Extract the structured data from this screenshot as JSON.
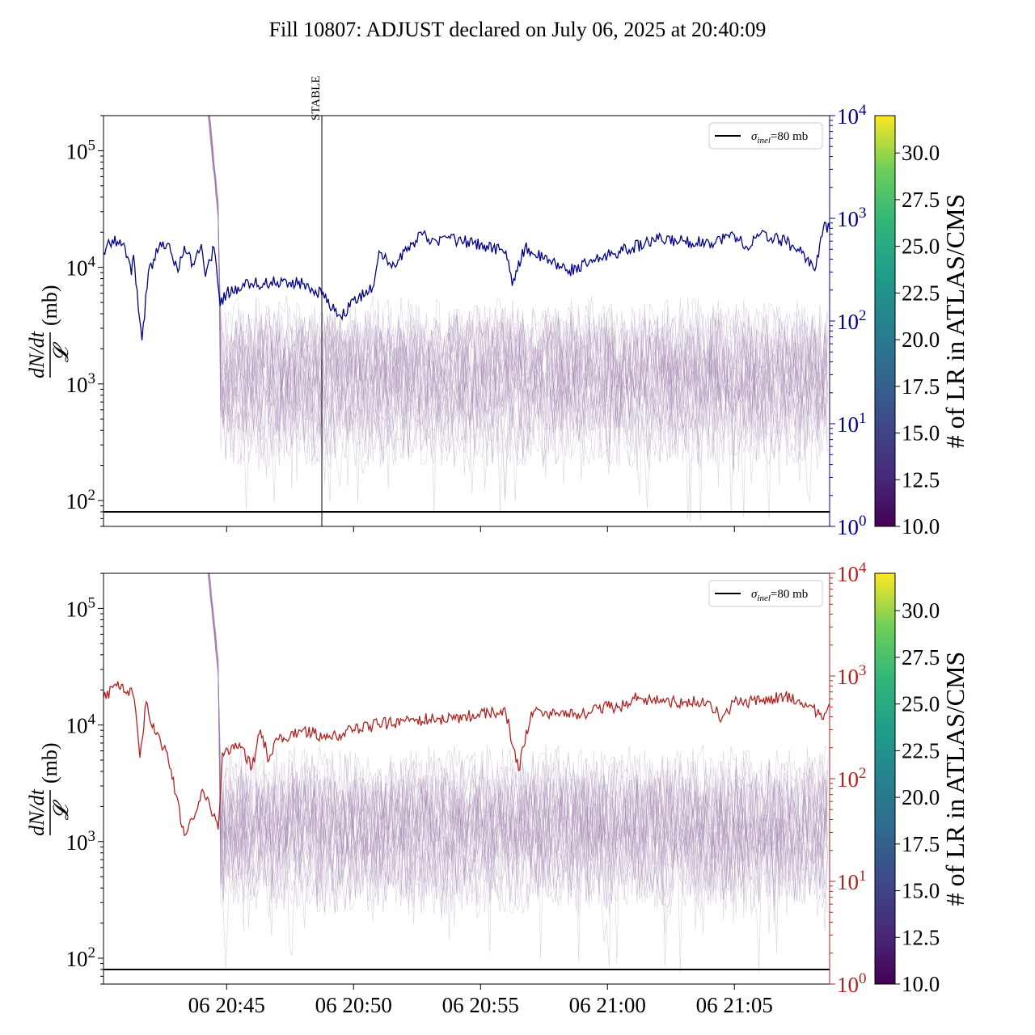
{
  "figure": {
    "title": "Fill 10807: ADJUST declared on July 06, 2025 at 20:40:09"
  },
  "chart_data": [
    {
      "type": "line",
      "panel": "top",
      "title": "",
      "ylabel_left": "dN/dt / 𝓛 (mb)",
      "ylabel_left_parts": {
        "numerator": "dN/dt",
        "denominator": "𝓛",
        "unit": "(mb)"
      },
      "yscale_left": "log",
      "ylim_left": [
        60,
        200000
      ],
      "yticks_left": [
        100,
        1000,
        10000,
        100000
      ],
      "yticklabels_left": [
        "10^2",
        "10^3",
        "10^4",
        "10^5"
      ],
      "yscale_right": "log",
      "ylim_right": [
        1,
        10000
      ],
      "yticks_right": [
        1,
        10,
        100,
        1000,
        10000
      ],
      "yticklabels_right": [
        "10^0",
        "10^1",
        "10^2",
        "10^3",
        "10^4"
      ],
      "right_axis_color": "#00008b",
      "xlim_minutes": [
        "20:40:09",
        "21:08:45"
      ],
      "xticks": [
        "20:45",
        "20:50",
        "20:55",
        "21:00",
        "21:05"
      ],
      "xticklabels": [],
      "vline": {
        "time": "20:48:45",
        "label": "STABLE"
      },
      "hline": {
        "value": 80,
        "label": "σinel=80 mb"
      },
      "legend": {
        "entries": [
          {
            "label_main": "σ",
            "label_sub": "inel",
            "label_rest": "=80 mb"
          }
        ],
        "placement": "upper right"
      },
      "series": [
        {
          "axis": "right",
          "color": "#00008b",
          "points": [
            [
              "20:40:09",
              460
            ],
            [
              "20:40:30",
              620
            ],
            [
              "20:41:00",
              520
            ],
            [
              "20:41:15",
              280
            ],
            [
              "20:41:20",
              440
            ],
            [
              "20:41:40",
              65
            ],
            [
              "20:41:55",
              300
            ],
            [
              "20:42:20",
              520
            ],
            [
              "20:42:45",
              560
            ],
            [
              "20:43:05",
              300
            ],
            [
              "20:43:20",
              540
            ],
            [
              "20:43:40",
              360
            ],
            [
              "20:44:00",
              560
            ],
            [
              "20:44:10",
              270
            ],
            [
              "20:44:30",
              520
            ],
            [
              "20:44:45",
              140
            ],
            [
              "20:45:00",
              190
            ],
            [
              "20:46:00",
              230
            ],
            [
              "20:47:00",
              240
            ],
            [
              "20:48:00",
              230
            ],
            [
              "20:48:45",
              180
            ],
            [
              "20:49:30",
              110
            ],
            [
              "20:50:00",
              160
            ],
            [
              "20:50:45",
              210
            ],
            [
              "20:51:00",
              480
            ],
            [
              "20:51:30",
              330
            ],
            [
              "20:52:00",
              480
            ],
            [
              "20:52:45",
              720
            ],
            [
              "20:53:00",
              560
            ],
            [
              "20:54:00",
              620
            ],
            [
              "20:55:00",
              560
            ],
            [
              "20:56:00",
              480
            ],
            [
              "20:56:15",
              220
            ],
            [
              "20:56:45",
              520
            ],
            [
              "20:57:30",
              400
            ],
            [
              "20:58:30",
              310
            ],
            [
              "20:59:30",
              380
            ],
            [
              "21:00:00",
              440
            ],
            [
              "21:01:00",
              520
            ],
            [
              "21:02:00",
              620
            ],
            [
              "21:03:00",
              600
            ],
            [
              "21:04:00",
              580
            ],
            [
              "21:05:00",
              690
            ],
            [
              "21:05:30",
              520
            ],
            [
              "21:06:00",
              690
            ],
            [
              "21:07:00",
              600
            ],
            [
              "21:07:45",
              450
            ],
            [
              "21:08:10",
              310
            ],
            [
              "21:08:30",
              800
            ],
            [
              "21:08:45",
              800
            ]
          ]
        }
      ],
      "background_band": {
        "left_axis_min": 300,
        "left_axis_max": 5000,
        "color": "#9a7aa8",
        "count": 26
      },
      "colorbar": {
        "label": "# of LR in ATLAS/CMS",
        "min": 10.0,
        "max": 32.0,
        "ticks": [
          "10.0",
          "12.5",
          "15.0",
          "17.5",
          "20.0",
          "22.5",
          "25.0",
          "27.5",
          "30.0"
        ],
        "colormap": "viridis"
      }
    },
    {
      "type": "line",
      "panel": "bottom",
      "title": "",
      "ylabel_left": "dN/dt / 𝓛 (mb)",
      "ylabel_left_parts": {
        "numerator": "dN/dt",
        "denominator": "𝓛",
        "unit": "(mb)"
      },
      "yscale_left": "log",
      "ylim_left": [
        60,
        200000
      ],
      "yticks_left": [
        100,
        1000,
        10000,
        100000
      ],
      "yticklabels_left": [
        "10^2",
        "10^3",
        "10^4",
        "10^5"
      ],
      "yscale_right": "log",
      "ylim_right": [
        1,
        10000
      ],
      "yticks_right": [
        1,
        10,
        100,
        1000,
        10000
      ],
      "yticklabels_right": [
        "10^0",
        "10^1",
        "10^2",
        "10^3",
        "10^4"
      ],
      "right_axis_color": "#b22222",
      "xlim_minutes": [
        "20:40:09",
        "21:08:45"
      ],
      "xticks": [
        "20:45",
        "20:50",
        "20:55",
        "21:00",
        "21:05"
      ],
      "xticklabels": [
        "06 20:45",
        "06 20:50",
        "06 20:55",
        "06 21:00",
        "06 21:05"
      ],
      "hline": {
        "value": 80,
        "label": "σinel=80 mb"
      },
      "legend": {
        "entries": [
          {
            "label_main": "σ",
            "label_sub": "inel",
            "label_rest": "=80 mb"
          }
        ],
        "placement": "upper right"
      },
      "series": [
        {
          "axis": "right",
          "color": "#b22222",
          "points": [
            [
              "20:40:09",
              620
            ],
            [
              "20:40:40",
              800
            ],
            [
              "20:41:00",
              700
            ],
            [
              "20:41:15",
              760
            ],
            [
              "20:41:25",
              460
            ],
            [
              "20:41:35",
              160
            ],
            [
              "20:41:50",
              560
            ],
            [
              "20:42:10",
              280
            ],
            [
              "20:42:40",
              180
            ],
            [
              "20:43:00",
              70
            ],
            [
              "20:43:20",
              28
            ],
            [
              "20:43:40",
              40
            ],
            [
              "20:44:00",
              75
            ],
            [
              "20:44:20",
              55
            ],
            [
              "20:44:40",
              32
            ],
            [
              "20:44:50",
              180
            ],
            [
              "20:45:30",
              220
            ],
            [
              "20:46:00",
              130
            ],
            [
              "20:46:20",
              300
            ],
            [
              "20:46:40",
              150
            ],
            [
              "20:47:00",
              240
            ],
            [
              "20:48:00",
              300
            ],
            [
              "20:49:00",
              250
            ],
            [
              "20:50:00",
              300
            ],
            [
              "20:51:00",
              340
            ],
            [
              "20:52:00",
              360
            ],
            [
              "20:53:00",
              380
            ],
            [
              "20:54:00",
              380
            ],
            [
              "20:55:00",
              440
            ],
            [
              "20:56:00",
              430
            ],
            [
              "20:56:30",
              120
            ],
            [
              "20:57:00",
              450
            ],
            [
              "20:57:30",
              420
            ],
            [
              "20:58:00",
              440
            ],
            [
              "20:59:00",
              430
            ],
            [
              "21:00:00",
              500
            ],
            [
              "21:00:30",
              480
            ],
            [
              "21:01:00",
              620
            ],
            [
              "21:02:00",
              560
            ],
            [
              "21:03:00",
              560
            ],
            [
              "21:04:00",
              560
            ],
            [
              "21:04:30",
              380
            ],
            [
              "21:05:00",
              560
            ],
            [
              "21:06:00",
              560
            ],
            [
              "21:07:00",
              640
            ],
            [
              "21:07:30",
              580
            ],
            [
              "21:08:00",
              520
            ],
            [
              "21:08:30",
              380
            ],
            [
              "21:08:45",
              540
            ]
          ]
        }
      ],
      "background_band": {
        "left_axis_min": 300,
        "left_axis_max": 5000,
        "color": "#9a7aa8",
        "count": 26
      },
      "colorbar": {
        "label": "# of LR in ATLAS/CMS",
        "min": 10.0,
        "max": 32.0,
        "ticks": [
          "10.0",
          "12.5",
          "15.0",
          "17.5",
          "20.0",
          "22.5",
          "25.0",
          "27.5",
          "30.0"
        ],
        "colormap": "viridis"
      }
    }
  ]
}
